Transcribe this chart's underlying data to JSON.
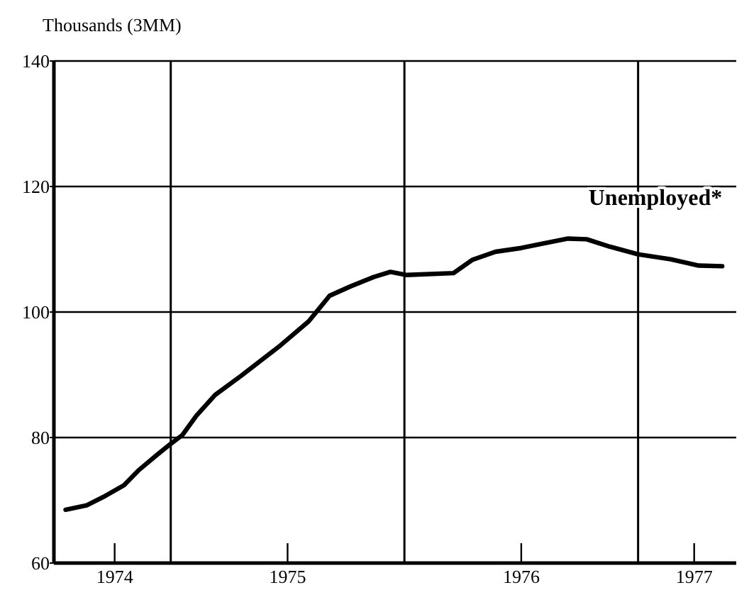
{
  "chart_data": {
    "type": "line",
    "ylabel": "Thousands (3MM)",
    "x": [
      1974.05,
      1974.14,
      1974.22,
      1974.3,
      1974.36,
      1974.44,
      1974.5,
      1974.55,
      1974.61,
      1974.69,
      1974.8,
      1974.97,
      1975.09,
      1975.18,
      1975.27,
      1975.37,
      1975.44,
      1975.51,
      1975.71,
      1975.79,
      1975.89,
      1976.0,
      1976.09,
      1976.2,
      1976.28,
      1976.38,
      1976.5,
      1976.64,
      1976.76,
      1976.86
    ],
    "series": [
      {
        "name": "Unemployed*",
        "color": "#000000",
        "values": [
          68.5,
          69.2,
          70.7,
          72.4,
          74.7,
          77.2,
          79.0,
          80.4,
          83.5,
          86.8,
          89.8,
          94.7,
          98.5,
          102.6,
          104.1,
          105.6,
          106.4,
          105.9,
          106.2,
          108.3,
          109.6,
          110.2,
          110.9,
          111.7,
          111.6,
          110.4,
          109.2,
          108.4,
          107.4,
          107.3
        ]
      }
    ],
    "xlim": [
      1974.0,
      1976.92
    ],
    "xticks": [
      {
        "value": 1974.26,
        "label": "1974"
      },
      {
        "value": 1975,
        "label": "1975"
      },
      {
        "value": 1976,
        "label": "1976"
      },
      {
        "value": 1976.74,
        "label": "1977"
      }
    ],
    "ylim": [
      60,
      140
    ],
    "yticks": [
      60,
      80,
      100,
      120,
      140
    ],
    "grid": "y",
    "legend": false,
    "marker": "none",
    "line_style": "solid",
    "ref_lines": [
      {
        "axis": "x",
        "value": 1974.5
      },
      {
        "axis": "x",
        "value": 1975.5
      },
      {
        "axis": "x",
        "value": 1976.5
      }
    ]
  }
}
